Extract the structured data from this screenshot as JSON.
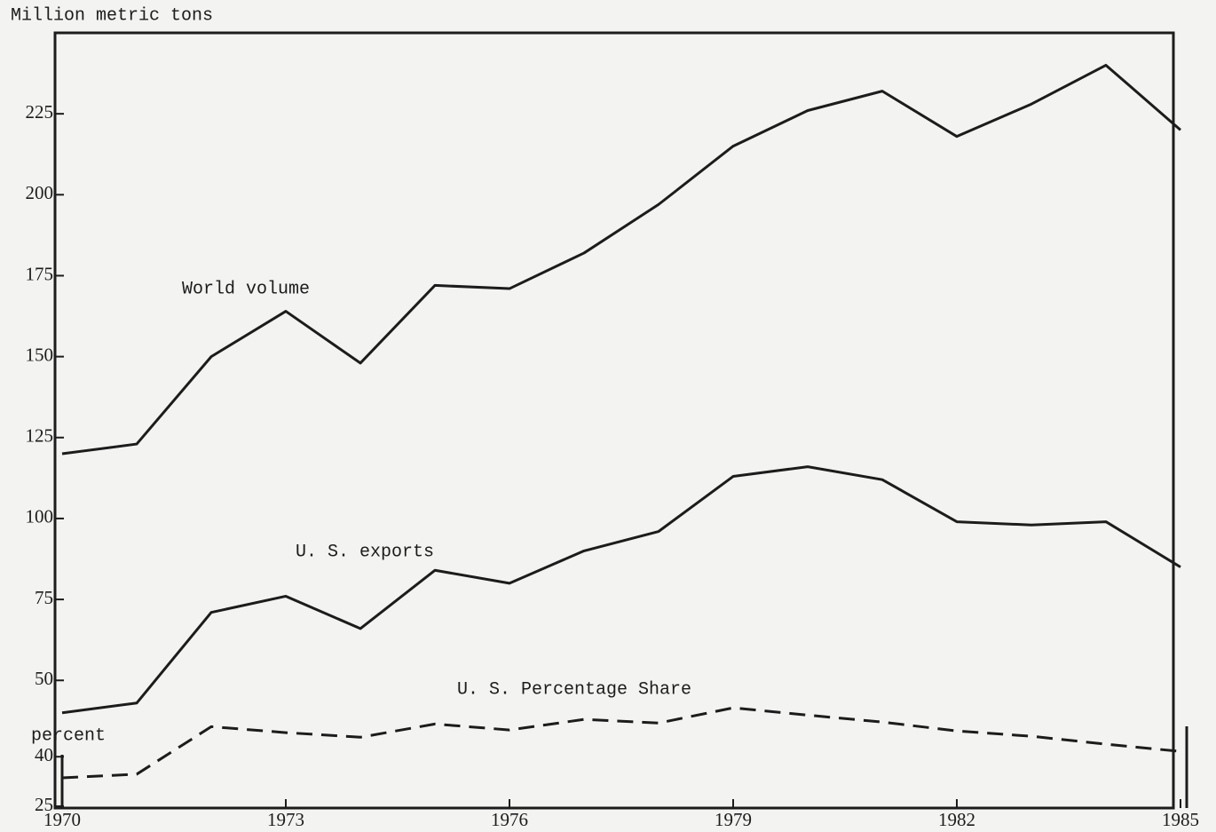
{
  "chart_data": [
    {
      "type": "line",
      "ylabel": "Million metric tons",
      "x": [
        1970,
        1971,
        1972,
        1973,
        1974,
        1975,
        1976,
        1977,
        1978,
        1979,
        1980,
        1981,
        1982,
        1983,
        1984,
        1985
      ],
      "xlim": [
        1970,
        1985
      ],
      "ylim": [
        38,
        250
      ],
      "yticks": [
        50,
        75,
        100,
        125,
        150,
        175,
        200,
        225
      ],
      "series": [
        {
          "name": "World volume",
          "color": "#1c1c1c",
          "dash": false,
          "values": [
            120,
            123,
            150,
            164,
            148,
            172,
            171,
            182,
            197,
            215,
            226,
            232,
            218,
            228,
            240,
            220
          ]
        },
        {
          "name": "U. S. exports",
          "color": "#1c1c1c",
          "dash": false,
          "values": [
            40,
            43,
            71,
            76,
            66,
            84,
            80,
            90,
            96,
            113,
            116,
            112,
            99,
            98,
            99,
            85
          ]
        }
      ]
    },
    {
      "type": "line",
      "ylabel": "percent",
      "x": [
        1970,
        1971,
        1972,
        1973,
        1974,
        1975,
        1976,
        1977,
        1978,
        1979,
        1980,
        1981,
        1982,
        1983,
        1984,
        1985
      ],
      "xlim": [
        1970,
        1985
      ],
      "xticks": [
        1970,
        1973,
        1976,
        1979,
        1982,
        1985
      ],
      "ylim": [
        25,
        57
      ],
      "yticks": [
        25,
        40
      ],
      "series": [
        {
          "name": "U. S. Percentage Share",
          "color": "#1c1c1c",
          "dash": true,
          "values": [
            33.6,
            34.7,
            49.1,
            47.3,
            45.9,
            49.9,
            48.1,
            51.3,
            50.2,
            54.8,
            52.6,
            50.5,
            47.8,
            46.2,
            43.8,
            41.6
          ]
        }
      ]
    }
  ]
}
